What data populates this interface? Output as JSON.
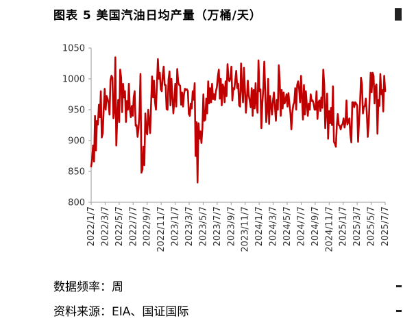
{
  "title": "图表 5 美国汽油日均产量（万桶/天）",
  "footnotes": {
    "frequency": "数据频率：周",
    "source": "资料来源：EIA、国证国际"
  },
  "colors": {
    "line": "#c00000",
    "axis": "#999999",
    "text": "#333333"
  },
  "chart_data": {
    "type": "line",
    "title": "图表 5 美国汽油日均产量（万桶/天）",
    "xlabel": "",
    "ylabel": "",
    "ylim": [
      800,
      1050
    ],
    "yticks": [
      800,
      850,
      900,
      950,
      1000,
      1050
    ],
    "grid": false,
    "legend": "none",
    "x_tick_labels": [
      "2022/1/7",
      "2022/3/7",
      "2022/5/7",
      "2022/7/7",
      "2022/9/7",
      "2022/11/7",
      "2023/1/7",
      "2023/3/7",
      "2023/5/7",
      "2023/7/7",
      "2023/9/7",
      "2023/11/7",
      "2024/1/7",
      "2024/3/7",
      "2024/5/7",
      "2024/7/7",
      "2024/9/7",
      "2024/11/7",
      "2025/1/7",
      "2025/3/7",
      "2025/5/7",
      "2025/7/7"
    ],
    "series": [
      {
        "values": [
          858,
          870,
          892,
          866,
          940,
          884,
          932,
          926,
          958,
          938,
          980,
          905,
          912,
          952,
          984,
          950,
          972,
          968,
          960,
          942,
          998,
          1005,
          1002,
          936,
          947,
          1035,
          892,
          937,
          966,
          930,
          1015,
          1002,
          946,
          992,
          970,
          980,
          930,
          964,
          950,
          992,
          951,
          938,
          956,
          940,
          970,
          980,
          924,
          925,
          906,
          920,
          946,
          1008,
          848,
          853,
          890,
          860,
          944,
          914,
          910,
          950,
          930,
          912,
          960,
          1004,
          970,
          997,
          962,
          950,
          990,
          1032,
          1000,
          1010,
          983,
          980,
          1006,
          1020,
          990,
          990,
          951,
          950,
          999,
          1012,
          957,
          1000,
          972,
          944,
          966,
          992,
          955,
          1016,
          995,
          990,
          989,
          958,
          978,
          955,
          975,
          984,
          982,
          983,
          980,
          943,
          940,
          960,
          952,
          980,
          966,
          993,
          875,
          930,
          832,
          928,
          903,
          915,
          896,
          919,
          975,
          932,
          934,
          968,
          944,
          996,
          960,
          985,
          962,
          992,
          967,
          975,
          966,
          980,
          987,
          1004,
          1015,
          968,
          1000,
          957,
          991,
          986,
          962,
          996,
          972,
          1024,
          1000,
          996,
          1002,
          1020,
          965,
          985,
          983,
          998,
          1013,
          985,
          992,
          957,
          955,
          1025,
          986,
          962,
          1018,
          983,
          945,
          968,
          997,
          973,
          964,
          954,
          985,
          940,
          982,
          952,
          993,
          960,
          945,
          1030,
          980,
          983,
          920,
          960,
          985,
          1028,
          979,
          930,
          948,
          1000,
          927,
          972,
          958,
          942,
          965,
          978,
          955,
          932,
          966,
          950,
          1022,
          996,
          940,
          982,
          952,
          978,
          960,
          966,
          975,
          955,
          977,
          960,
          945,
          918,
          945,
          958,
          962,
          985,
          950,
          990,
          996,
          984,
          962,
          1005,
          970,
          934,
          990,
          942,
          980,
          958,
          940,
          960,
          950,
          975,
          964,
          965,
          960,
          950,
          950,
          980,
          935,
          962,
          965,
          948,
          970,
          953,
          1015,
          991,
          920,
          948,
          976,
          903,
          948,
          928,
          953,
          925,
          988,
          898,
          895,
          890,
          925,
          943,
          925,
          924,
          918,
          925,
          927,
          936,
          921,
          930,
          965,
          926,
          932,
          936,
          910,
          897,
          962,
          962,
          954,
          962,
          960,
          957,
          898,
          932,
          960,
          1002,
          991,
          944,
          955,
          956,
          968,
          945,
          906,
          928,
          973,
          1010,
          978,
          1010,
          1005,
          960,
          988,
          991,
          911,
          966,
          956,
          1008,
          975,
          982,
          947,
          1005,
          980
        ]
      }
    ]
  }
}
